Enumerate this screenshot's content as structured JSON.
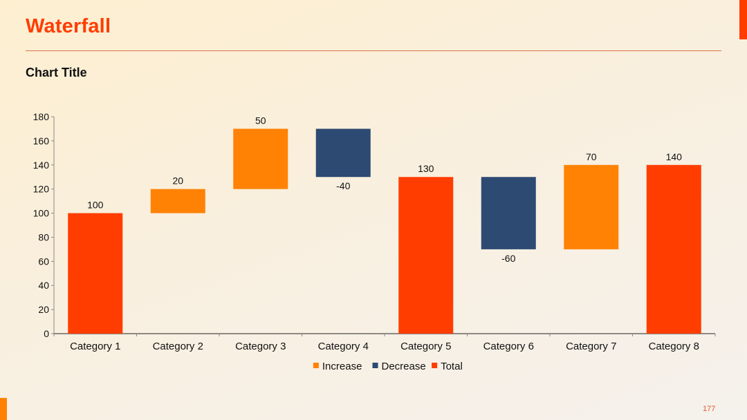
{
  "slide": {
    "title": "Waterfall",
    "page_number": "177",
    "colors": {
      "title": "#ff3d00",
      "accent_top_right": "#ff3d00",
      "accent_bottom_left": "#ff8205",
      "header_line": "#d9754a"
    }
  },
  "chart_data": {
    "type": "bar",
    "subtype": "waterfall",
    "title": "Chart Title",
    "xlabel": "",
    "ylabel": "",
    "ylim": [
      0,
      180
    ],
    "yticks": [
      0,
      20,
      40,
      60,
      80,
      100,
      120,
      140,
      160,
      180
    ],
    "grid": false,
    "legend_position": "bottom",
    "categories": [
      "Category 1",
      "Category 2",
      "Category 3",
      "Category 4",
      "Category 5",
      "Category 6",
      "Category 7",
      "Category 8"
    ],
    "values": [
      100,
      20,
      50,
      -40,
      130,
      -60,
      70,
      140
    ],
    "kinds": [
      "total",
      "increase",
      "increase",
      "decrease",
      "total",
      "decrease",
      "increase",
      "total"
    ],
    "bars": [
      {
        "category": "Category 1",
        "kind": "total",
        "label": "100",
        "start": 0,
        "end": 100
      },
      {
        "category": "Category 2",
        "kind": "increase",
        "label": "20",
        "start": 100,
        "end": 120
      },
      {
        "category": "Category 3",
        "kind": "increase",
        "label": "50",
        "start": 120,
        "end": 170
      },
      {
        "category": "Category 4",
        "kind": "decrease",
        "label": "-40",
        "start": 170,
        "end": 130
      },
      {
        "category": "Category 5",
        "kind": "total",
        "label": "130",
        "start": 0,
        "end": 130
      },
      {
        "category": "Category 6",
        "kind": "decrease",
        "label": "-60",
        "start": 130,
        "end": 70
      },
      {
        "category": "Category 7",
        "kind": "increase",
        "label": "70",
        "start": 70,
        "end": 140
      },
      {
        "category": "Category 8",
        "kind": "total",
        "label": "140",
        "start": 0,
        "end": 140
      }
    ],
    "legend": [
      {
        "name": "Increase",
        "kind": "increase",
        "color": "#ff8205"
      },
      {
        "name": "Decrease",
        "kind": "decrease",
        "color": "#2c4a72"
      },
      {
        "name": "Total",
        "kind": "total",
        "color": "#ff3d00"
      }
    ],
    "colors": {
      "increase": "#ff8205",
      "decrease": "#2c4a72",
      "total": "#ff3d00"
    }
  }
}
